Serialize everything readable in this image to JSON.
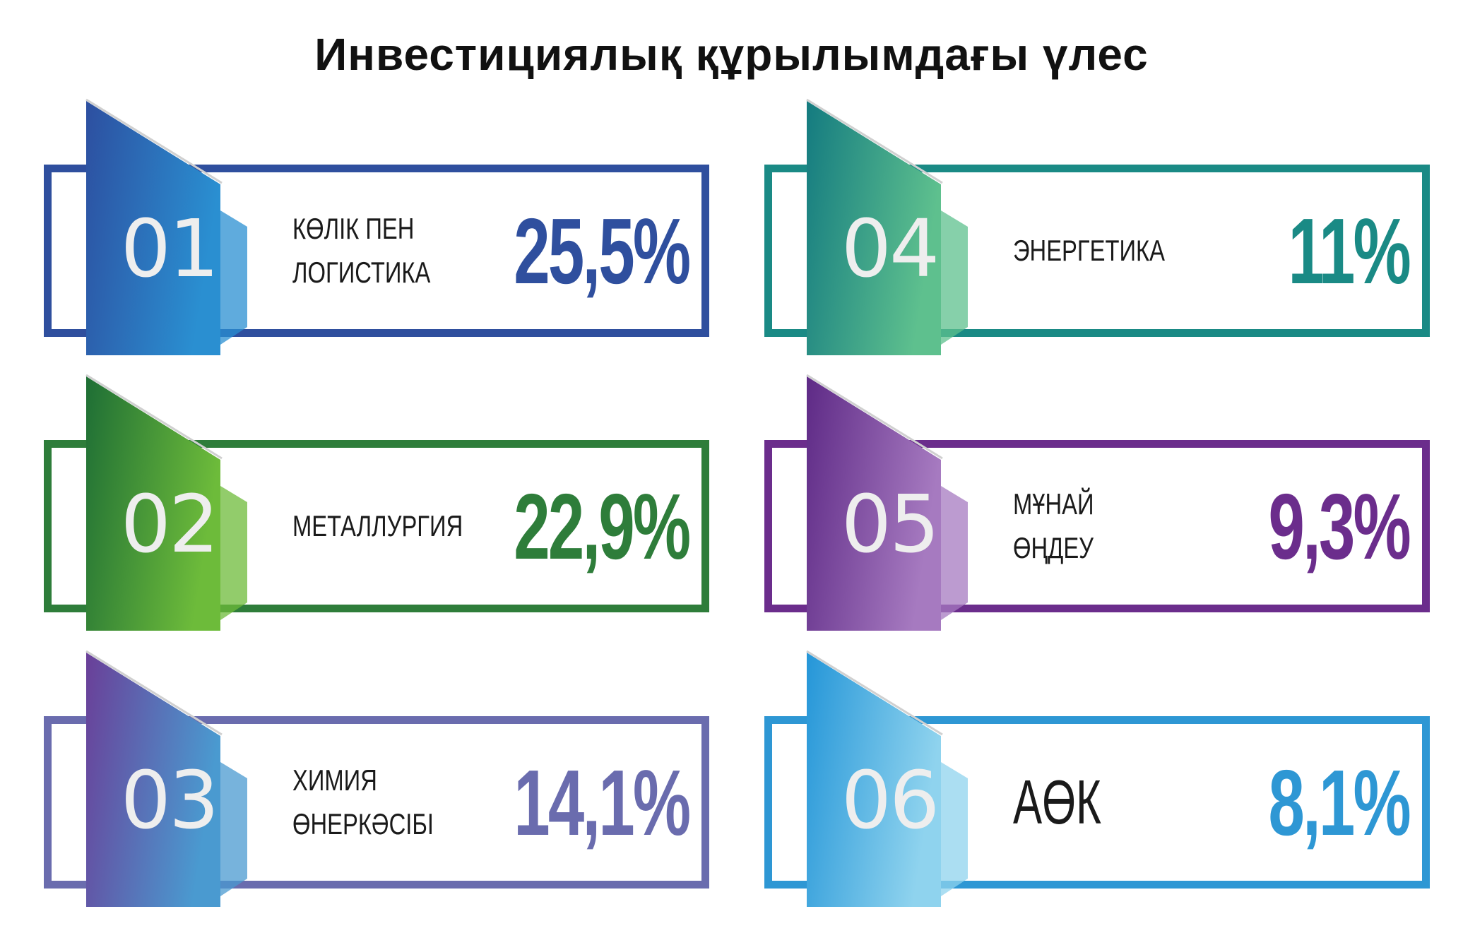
{
  "title": "Инвестициялық құрылымдағы үлес",
  "items": [
    {
      "number": "01",
      "label": "КӨЛІК ПЕН\nЛОГИСТИКА",
      "value": "25,5%",
      "color": "#2f4f9e",
      "grad_start": "#2d4fa0",
      "grad_end": "#2a8fd1"
    },
    {
      "number": "02",
      "label": "МЕТАЛЛУРГИЯ",
      "value": "22,9%",
      "color": "#2e7d3a",
      "grad_start": "#1e6e35",
      "grad_end": "#6dbb3a"
    },
    {
      "number": "03",
      "label": "ХИМИЯ\nӨНЕРКӘСІБІ",
      "value": "14,1%",
      "color": "#6a6cae",
      "grad_start": "#6a3f98",
      "grad_end": "#4a9ad0"
    },
    {
      "number": "04",
      "label": "ЭНЕРГЕТИКА",
      "value": "11%",
      "color": "#1a8a85",
      "grad_start": "#147b80",
      "grad_end": "#5ec08e"
    },
    {
      "number": "05",
      "label": "МҰНАЙ\nӨҢДЕУ",
      "value": "9,3%",
      "color": "#6b2d8c",
      "grad_start": "#5e2a86",
      "grad_end": "#a67ac0"
    },
    {
      "number": "06",
      "label": "АӨК",
      "value": "8,1%",
      "color": "#2e97d4",
      "grad_start": "#2596d8",
      "grad_end": "#8fd3ee"
    }
  ]
}
